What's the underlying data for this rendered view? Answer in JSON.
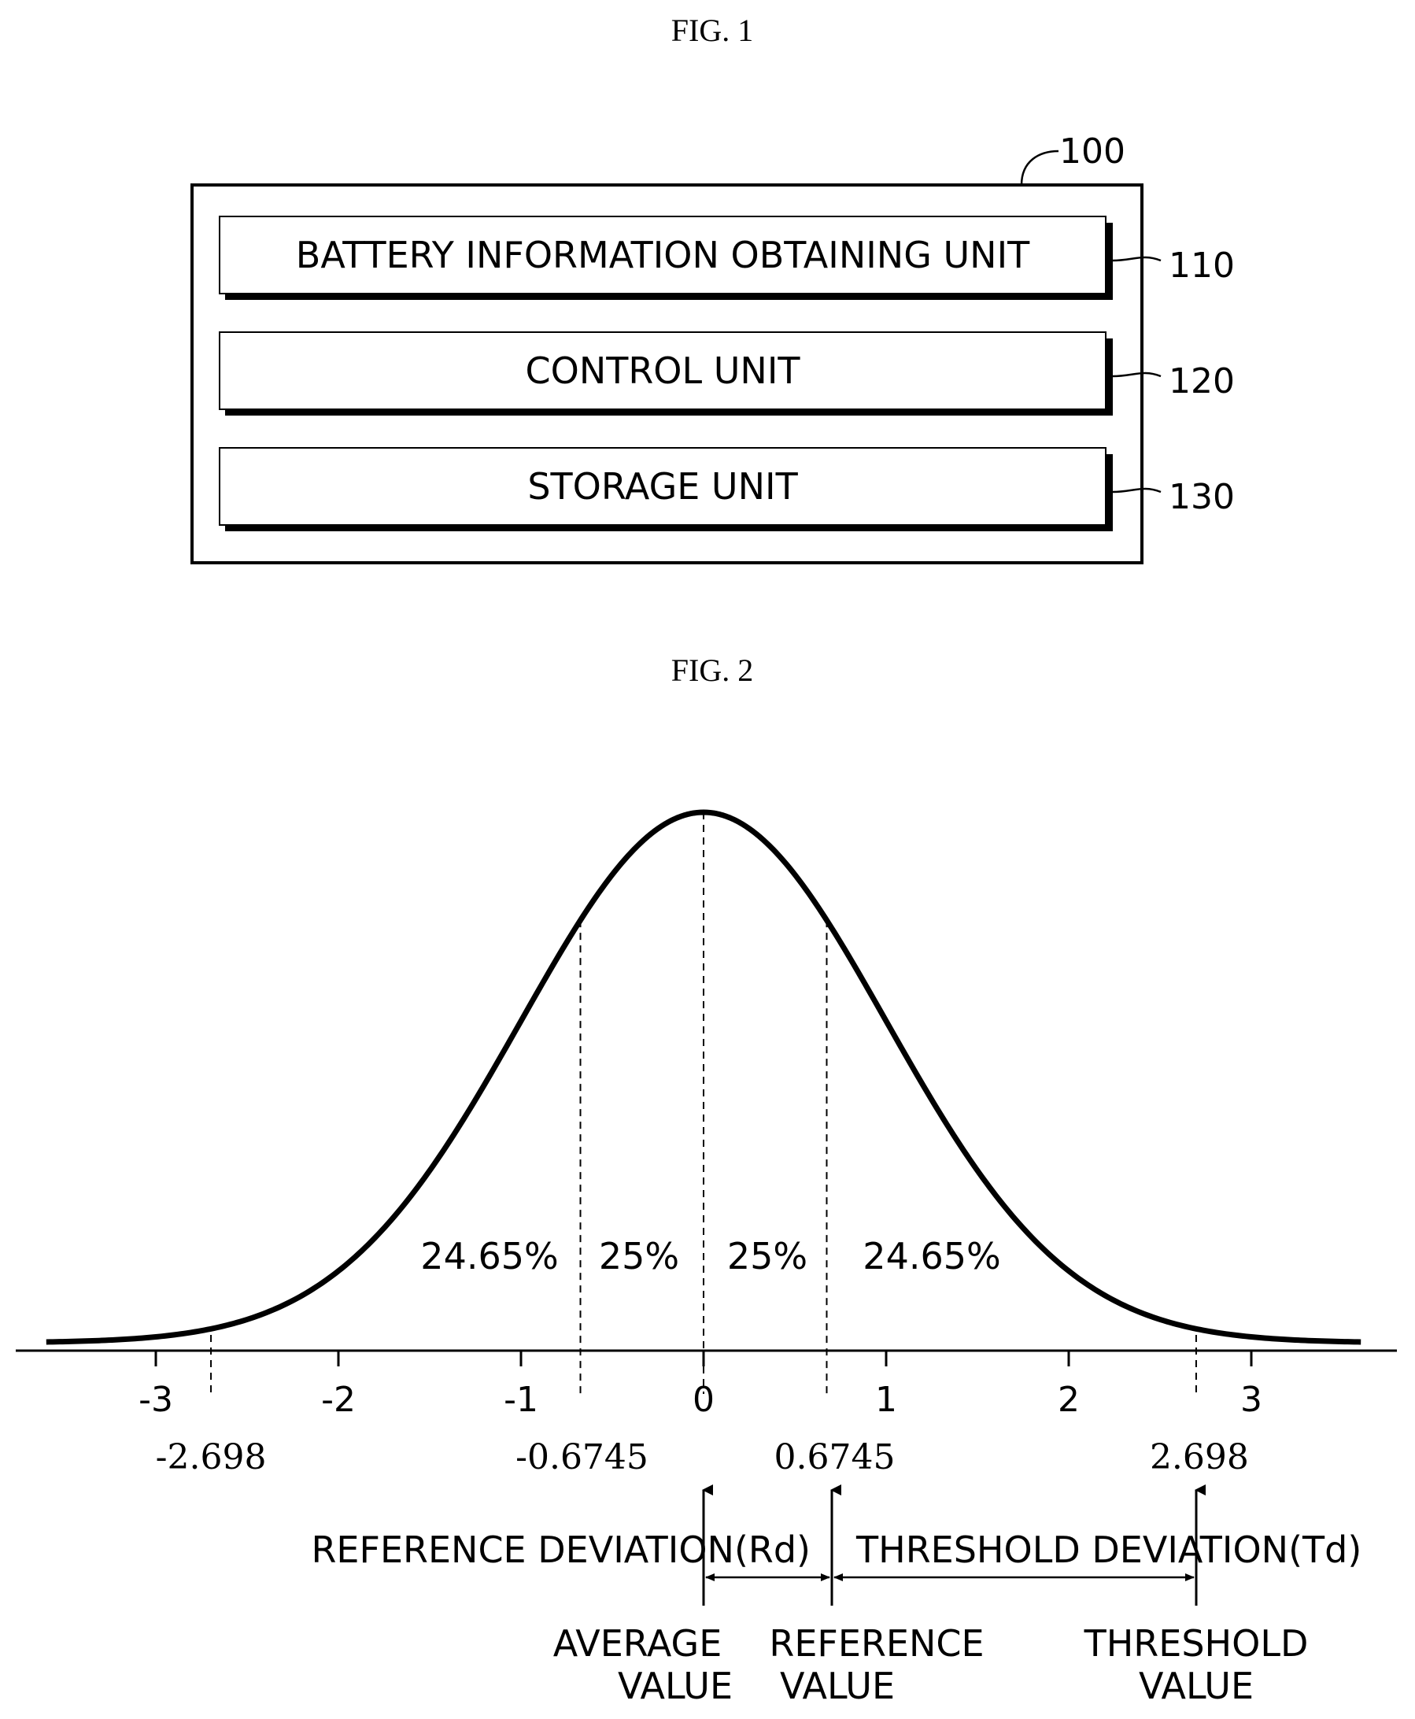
{
  "fig1": {
    "title": "FIG. 1",
    "ref_main": "100",
    "blocks": [
      {
        "label": "BATTERY INFORMATION OBTAINING UNIT",
        "ref": "110"
      },
      {
        "label": "CONTROL UNIT",
        "ref": "120"
      },
      {
        "label": "STORAGE UNIT",
        "ref": "130"
      }
    ]
  },
  "fig2": {
    "title": "FIG. 2",
    "region_labels": [
      "24.65%",
      "25%",
      "25%",
      "24.65%"
    ],
    "annotations": {
      "reference_deviation": "REFERENCE DEVIATION(Rd)",
      "threshold_deviation": "THRESHOLD DEVIATION(Td)",
      "average_value": [
        "AVERAGE",
        "VALUE"
      ],
      "reference_value": [
        "REFERENCE",
        "VALUE"
      ],
      "threshold_value": [
        "THRESHOLD",
        "VALUE"
      ]
    }
  },
  "chart_data": {
    "type": "line",
    "title": "",
    "xlabel": "",
    "ylabel": "",
    "xlim": [
      -3.6,
      3.6
    ],
    "x_ticks": [
      -3,
      -2,
      -1,
      0,
      1,
      2,
      3
    ],
    "x_tick_labels": [
      "-3",
      "-2",
      "-1",
      "0",
      "1",
      "2",
      "3"
    ],
    "marked_positions": [
      -2.698,
      -0.6745,
      0.6745,
      2.698
    ],
    "marked_labels": [
      "-2.698",
      "-0.6745",
      "0.6745",
      "2.698"
    ],
    "series": [
      {
        "curve": "standard normal distribution",
        "mean": 0,
        "std": 1
      }
    ],
    "grid": false
  }
}
